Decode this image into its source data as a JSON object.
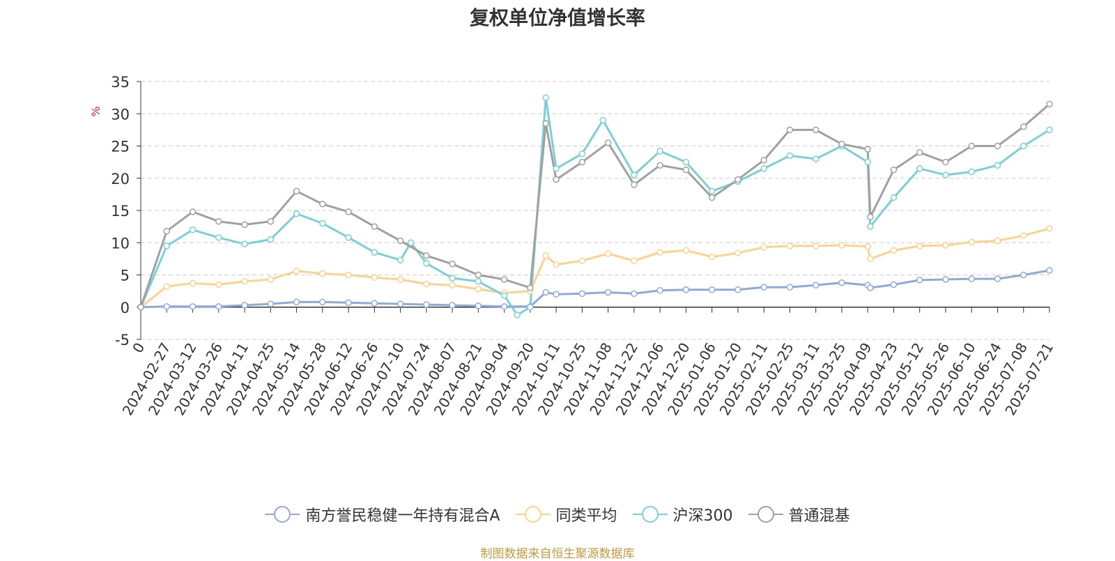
{
  "chart_data": {
    "type": "line",
    "title": "复权单位净值增长率",
    "ylabel": "%",
    "ylim": [
      -5,
      35
    ],
    "yticks": [
      -5,
      0,
      5,
      10,
      15,
      20,
      25,
      30,
      35
    ],
    "grid": true,
    "legend_position": "bottom",
    "x_tick_labels": [
      "0",
      "2024-02-27",
      "2024-03-12",
      "2024-03-26",
      "2024-04-11",
      "2024-04-25",
      "2024-05-14",
      "2024-05-28",
      "2024-06-12",
      "2024-06-26",
      "2024-07-10",
      "2024-07-24",
      "2024-08-07",
      "2024-08-21",
      "2024-09-04",
      "2024-09-20",
      "2024-10-11",
      "2024-10-25",
      "2024-11-08",
      "2024-11-22",
      "2024-12-06",
      "2024-12-20",
      "2025-01-06",
      "2025-01-20",
      "2025-02-11",
      "2025-02-25",
      "2025-03-11",
      "2025-03-25",
      "2025-04-09",
      "2025-04-23",
      "2025-05-12",
      "2025-05-26",
      "2025-06-10",
      "2025-06-24",
      "2025-07-08",
      "2025-07-21"
    ],
    "x_tick_positions": [
      0,
      10,
      20,
      30,
      40,
      50,
      60,
      70,
      80,
      90,
      100,
      110,
      120,
      130,
      140,
      150,
      160,
      170,
      180,
      190,
      200,
      210,
      220,
      230,
      240,
      250,
      260,
      270,
      280,
      290,
      300,
      310,
      320,
      330,
      340,
      350
    ],
    "x_max": 350,
    "series": [
      {
        "name": "南方誉民稳健一年持有混合A",
        "color": "#8fa9d8",
        "points": [
          [
            0,
            0
          ],
          [
            10,
            0.1
          ],
          [
            20,
            0.1
          ],
          [
            30,
            0.1
          ],
          [
            40,
            0.3
          ],
          [
            50,
            0.5
          ],
          [
            60,
            0.8
          ],
          [
            70,
            0.8
          ],
          [
            80,
            0.7
          ],
          [
            90,
            0.6
          ],
          [
            100,
            0.5
          ],
          [
            110,
            0.4
          ],
          [
            120,
            0.3
          ],
          [
            130,
            0.2
          ],
          [
            140,
            0.1
          ],
          [
            150,
            0.1
          ],
          [
            156,
            2.3
          ],
          [
            160,
            2.0
          ],
          [
            170,
            2.1
          ],
          [
            180,
            2.3
          ],
          [
            190,
            2.1
          ],
          [
            200,
            2.6
          ],
          [
            210,
            2.7
          ],
          [
            220,
            2.7
          ],
          [
            230,
            2.7
          ],
          [
            240,
            3.1
          ],
          [
            250,
            3.1
          ],
          [
            260,
            3.4
          ],
          [
            270,
            3.8
          ],
          [
            280,
            3.4
          ],
          [
            281,
            3.0
          ],
          [
            290,
            3.5
          ],
          [
            300,
            4.2
          ],
          [
            310,
            4.3
          ],
          [
            320,
            4.4
          ],
          [
            330,
            4.4
          ],
          [
            340,
            5.0
          ],
          [
            350,
            5.7
          ]
        ]
      },
      {
        "name": "同类平均",
        "color": "#fdd28e",
        "points": [
          [
            0,
            0
          ],
          [
            10,
            3.2
          ],
          [
            20,
            3.7
          ],
          [
            30,
            3.5
          ],
          [
            40,
            4.0
          ],
          [
            50,
            4.3
          ],
          [
            60,
            5.6
          ],
          [
            70,
            5.2
          ],
          [
            80,
            5.0
          ],
          [
            90,
            4.6
          ],
          [
            100,
            4.3
          ],
          [
            110,
            3.6
          ],
          [
            120,
            3.4
          ],
          [
            130,
            2.8
          ],
          [
            140,
            2.2
          ],
          [
            150,
            2.5
          ],
          [
            156,
            8.0
          ],
          [
            160,
            6.6
          ],
          [
            170,
            7.2
          ],
          [
            180,
            8.3
          ],
          [
            190,
            7.2
          ],
          [
            200,
            8.5
          ],
          [
            210,
            8.8
          ],
          [
            220,
            7.8
          ],
          [
            230,
            8.4
          ],
          [
            240,
            9.3
          ],
          [
            250,
            9.5
          ],
          [
            260,
            9.5
          ],
          [
            270,
            9.6
          ],
          [
            280,
            9.4
          ],
          [
            281,
            7.5
          ],
          [
            290,
            8.8
          ],
          [
            300,
            9.5
          ],
          [
            310,
            9.6
          ],
          [
            320,
            10.1
          ],
          [
            330,
            10.3
          ],
          [
            340,
            11.1
          ],
          [
            350,
            12.2
          ]
        ]
      },
      {
        "name": "沪深300",
        "color": "#7ad0d6",
        "points": [
          [
            0,
            0
          ],
          [
            10,
            9.5
          ],
          [
            20,
            12.0
          ],
          [
            30,
            10.8
          ],
          [
            40,
            9.8
          ],
          [
            50,
            10.5
          ],
          [
            60,
            14.5
          ],
          [
            70,
            13.0
          ],
          [
            80,
            10.8
          ],
          [
            90,
            8.5
          ],
          [
            100,
            7.3
          ],
          [
            104,
            10.0
          ],
          [
            110,
            6.8
          ],
          [
            120,
            4.5
          ],
          [
            130,
            4.0
          ],
          [
            140,
            1.8
          ],
          [
            145,
            -1.2
          ],
          [
            150,
            0.0
          ],
          [
            156,
            32.5
          ],
          [
            160,
            21.5
          ],
          [
            170,
            23.8
          ],
          [
            178,
            29.0
          ],
          [
            190,
            20.5
          ],
          [
            200,
            24.2
          ],
          [
            210,
            22.5
          ],
          [
            220,
            18.0
          ],
          [
            230,
            19.5
          ],
          [
            240,
            21.5
          ],
          [
            250,
            23.5
          ],
          [
            260,
            23.0
          ],
          [
            270,
            25.0
          ],
          [
            280,
            22.5
          ],
          [
            281,
            12.5
          ],
          [
            290,
            17.0
          ],
          [
            300,
            21.5
          ],
          [
            310,
            20.5
          ],
          [
            320,
            21.0
          ],
          [
            330,
            22.0
          ],
          [
            340,
            25.0
          ],
          [
            350,
            27.5
          ]
        ]
      },
      {
        "name": "普通混基",
        "color": "#a0a0a0",
        "points": [
          [
            0,
            0
          ],
          [
            10,
            11.8
          ],
          [
            20,
            14.8
          ],
          [
            30,
            13.3
          ],
          [
            40,
            12.8
          ],
          [
            50,
            13.3
          ],
          [
            60,
            18.0
          ],
          [
            70,
            16.0
          ],
          [
            80,
            14.8
          ],
          [
            90,
            12.5
          ],
          [
            100,
            10.3
          ],
          [
            110,
            8.0
          ],
          [
            120,
            6.7
          ],
          [
            130,
            5.0
          ],
          [
            140,
            4.3
          ],
          [
            150,
            3.0
          ],
          [
            156,
            28.5
          ],
          [
            160,
            19.8
          ],
          [
            170,
            22.5
          ],
          [
            180,
            25.5
          ],
          [
            190,
            19.0
          ],
          [
            200,
            22.0
          ],
          [
            210,
            21.3
          ],
          [
            220,
            17.0
          ],
          [
            230,
            19.8
          ],
          [
            240,
            22.8
          ],
          [
            250,
            27.5
          ],
          [
            260,
            27.5
          ],
          [
            270,
            25.3
          ],
          [
            280,
            24.5
          ],
          [
            281,
            14.0
          ],
          [
            290,
            21.3
          ],
          [
            300,
            24.0
          ],
          [
            310,
            22.5
          ],
          [
            320,
            25.0
          ],
          [
            330,
            25.0
          ],
          [
            340,
            28.0
          ],
          [
            350,
            31.5
          ]
        ]
      }
    ]
  },
  "source_note": "制图数据来自恒生聚源数据库"
}
